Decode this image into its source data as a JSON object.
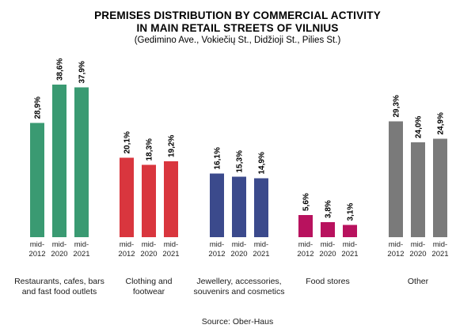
{
  "chart_data": {
    "type": "bar",
    "title_lines": [
      "PREMISES DISTRIBUTION BY COMMERCIAL ACTIVITY",
      "IN MAIN RETAIL STREETS OF VILNIUS"
    ],
    "subtitle": "(Gedimino Ave., Vokiečių St., Didžioji St., Pilies St.)",
    "source": "Source: Ober-Haus",
    "unit": "%",
    "ylim": [
      0,
      40
    ],
    "grid": false,
    "legend": "none",
    "periods": [
      {
        "line1": "mid-",
        "line2": "2012"
      },
      {
        "line1": "mid-",
        "line2": "2020"
      },
      {
        "line1": "mid-",
        "line2": "2021"
      }
    ],
    "groups": [
      {
        "label_lines": [
          "Restaurants, cafes, bars",
          "and fast food outlets"
        ],
        "color": "#3a9a72",
        "values": [
          28.9,
          38.6,
          37.9
        ],
        "labels": [
          "28,9%",
          "38,6%",
          "37,9%"
        ]
      },
      {
        "label_lines": [
          "Clothing and",
          "footwear"
        ],
        "color": "#d9363e",
        "values": [
          20.1,
          18.3,
          19.2
        ],
        "labels": [
          "20,1%",
          "18,3%",
          "19,2%"
        ]
      },
      {
        "label_lines": [
          "Jewellery, accessories,",
          "souvenirs and cosmetics"
        ],
        "color": "#3b4a8c",
        "values": [
          16.1,
          15.3,
          14.9
        ],
        "labels": [
          "16,1%",
          "15,3%",
          "14,9%"
        ]
      },
      {
        "label_lines": [
          "Food stores"
        ],
        "color": "#b8125e",
        "values": [
          5.6,
          3.8,
          3.1
        ],
        "labels": [
          "5,6%",
          "3,8%",
          "3,1%"
        ]
      },
      {
        "label_lines": [
          "Other"
        ],
        "color": "#7a7a7a",
        "values": [
          29.3,
          24.0,
          24.9
        ],
        "labels": [
          "29,3%",
          "24,0%",
          "24,9%"
        ]
      }
    ]
  }
}
